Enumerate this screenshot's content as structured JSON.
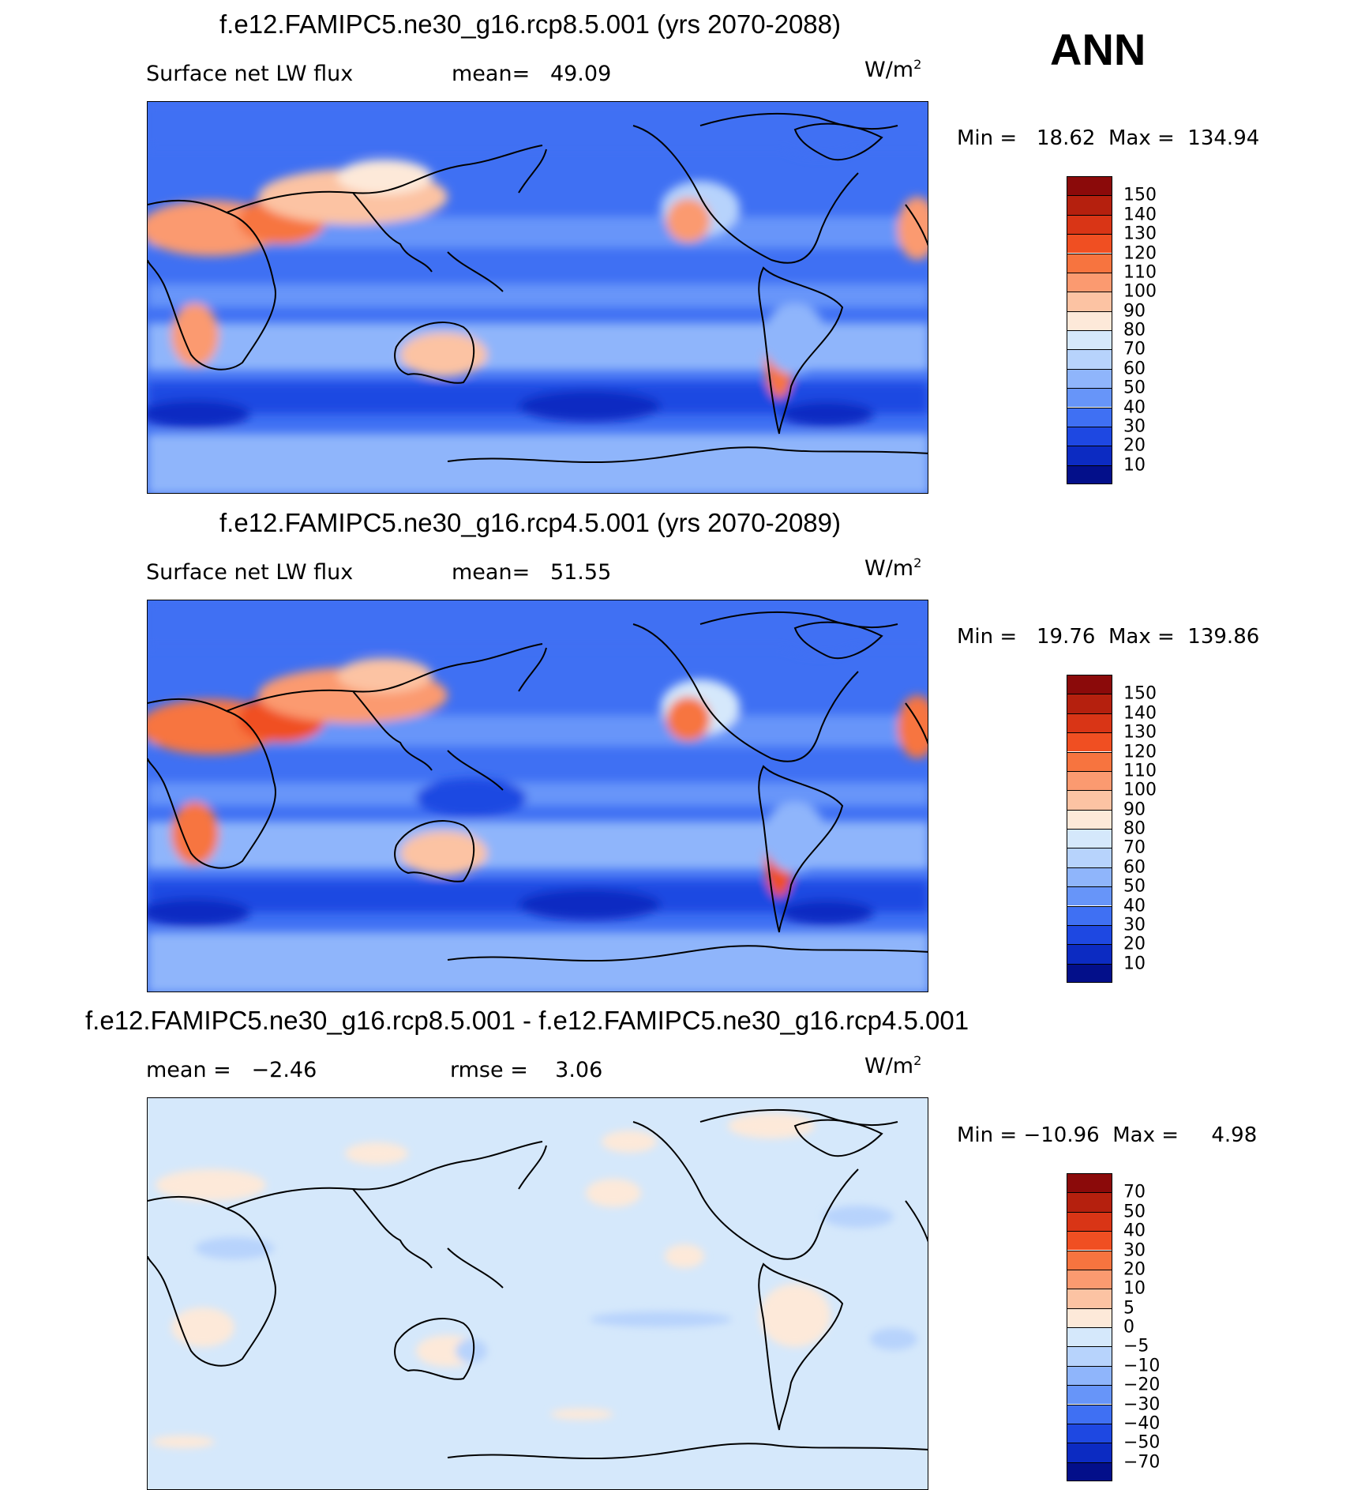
{
  "season": "ANN",
  "panels": [
    {
      "id": "p1",
      "title": "f.e12.FAMIPC5.ne30_g16.rcp8.5.001 (yrs 2070-2088)",
      "left_label": "Surface net LW flux",
      "stat1_label": "mean=",
      "stat1_value": "49.09",
      "stat2_label": "",
      "stat2_value": "",
      "units_base": "W/m",
      "units_exp": "2",
      "min_label": "Min =",
      "min_value": "18.62",
      "max_label": "Max =",
      "max_value": "134.94",
      "colorbar": {
        "labels": [
          "150",
          "140",
          "130",
          "120",
          "110",
          "100",
          "90",
          "80",
          "70",
          "60",
          "50",
          "40",
          "30",
          "20",
          "10"
        ],
        "colors": [
          "#8b0a0a",
          "#b5200e",
          "#d93516",
          "#f04f22",
          "#f7743f",
          "#fb9a70",
          "#fcc3a3",
          "#fde9d9",
          "#d5e8fb",
          "#b7d3fc",
          "#8fb5fb",
          "#6795f9",
          "#3f70f3",
          "#1e48e2",
          "#0c2bc2",
          "#030f8a"
        ]
      }
    },
    {
      "id": "p2",
      "title": "f.e12.FAMIPC5.ne30_g16.rcp4.5.001 (yrs 2070-2089)",
      "left_label": "Surface net LW flux",
      "stat1_label": "mean=",
      "stat1_value": "51.55",
      "stat2_label": "",
      "stat2_value": "",
      "units_base": "W/m",
      "units_exp": "2",
      "min_label": "Min =",
      "min_value": "19.76",
      "max_label": "Max =",
      "max_value": "139.86",
      "colorbar": {
        "labels": [
          "150",
          "140",
          "130",
          "120",
          "110",
          "100",
          "90",
          "80",
          "70",
          "60",
          "50",
          "40",
          "30",
          "20",
          "10"
        ],
        "colors": [
          "#8b0a0a",
          "#b5200e",
          "#d93516",
          "#f04f22",
          "#f7743f",
          "#fb9a70",
          "#fcc3a3",
          "#fde9d9",
          "#d5e8fb",
          "#b7d3fc",
          "#8fb5fb",
          "#6795f9",
          "#3f70f3",
          "#1e48e2",
          "#0c2bc2",
          "#030f8a"
        ]
      }
    },
    {
      "id": "p3",
      "title": "f.e12.FAMIPC5.ne30_g16.rcp8.5.001 - f.e12.FAMIPC5.ne30_g16.rcp4.5.001",
      "left_label": "",
      "stat1_label": "mean =",
      "stat1_value": "−2.46",
      "stat2_label": "rmse =",
      "stat2_value": "3.06",
      "units_base": "W/m",
      "units_exp": "2",
      "min_label": "Min =",
      "min_value": "−10.96",
      "max_label": "Max =",
      "max_value": "4.98",
      "colorbar": {
        "labels": [
          "70",
          "50",
          "40",
          "30",
          "20",
          "10",
          "5",
          "0",
          "−5",
          "−10",
          "−20",
          "−30",
          "−40",
          "−50",
          "−70"
        ],
        "colors": [
          "#8b0a0a",
          "#b5200e",
          "#d93516",
          "#f04f22",
          "#f7743f",
          "#fb9a70",
          "#fcc3a3",
          "#fde9d9",
          "#d5e8fb",
          "#b7d3fc",
          "#8fb5fb",
          "#6795f9",
          "#3f70f3",
          "#1e48e2",
          "#0c2bc2",
          "#030f8a"
        ]
      }
    }
  ]
}
